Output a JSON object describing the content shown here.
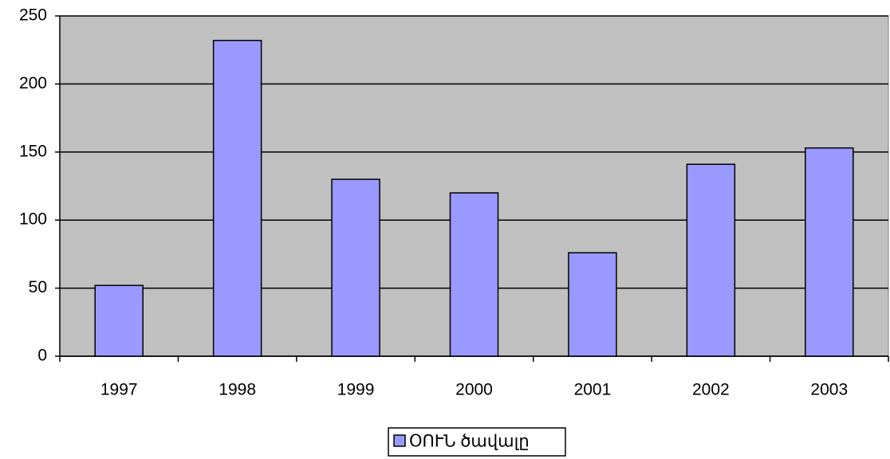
{
  "chart_data": {
    "type": "bar",
    "categories": [
      "1997",
      "1998",
      "1999",
      "2000",
      "2001",
      "2002",
      "2003"
    ],
    "series": [
      {
        "name": "ՕՈՒՆ ծավալը",
        "color": "#9999ff",
        "values": [
          52,
          232,
          130,
          120,
          76,
          141,
          153
        ]
      }
    ],
    "ylim": [
      0,
      250
    ],
    "yticks": [
      0,
      50,
      100,
      150,
      200,
      250
    ],
    "grid": true,
    "legend": "bottom"
  }
}
